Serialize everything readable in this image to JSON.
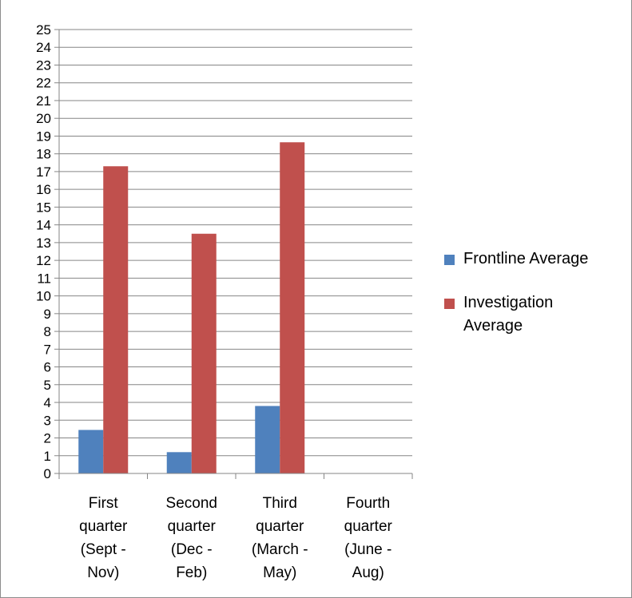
{
  "chart_data": {
    "type": "bar",
    "categories": [
      [
        "First",
        "quarter",
        "(Sept -",
        "Nov)"
      ],
      [
        "Second",
        "quarter",
        "(Dec -",
        "Feb)"
      ],
      [
        "Third",
        "quarter",
        "(March -",
        "May)"
      ],
      [
        "Fourth",
        "quarter",
        "(June -",
        "Aug)"
      ]
    ],
    "series": [
      {
        "name": "Frontline Average",
        "color": "#4f81bd",
        "values": [
          2.45,
          1.2,
          3.8,
          0
        ]
      },
      {
        "name": "Investigation Average",
        "color": "#c0504d",
        "values": [
          17.3,
          13.5,
          18.65,
          0
        ]
      }
    ],
    "ylim": [
      0,
      25
    ],
    "ytick_step": 1,
    "yticks": [
      "0",
      "1",
      "2",
      "3",
      "4",
      "5",
      "6",
      "7",
      "8",
      "9",
      "10",
      "11",
      "12",
      "13",
      "14",
      "15",
      "16",
      "17",
      "18",
      "19",
      "20",
      "21",
      "22",
      "23",
      "24",
      "25"
    ],
    "grid": true,
    "legend_position": "right",
    "gridline_color": "#868686",
    "title": "",
    "xlabel": "",
    "ylabel": ""
  },
  "legend": {
    "items": [
      {
        "label": "Frontline Average",
        "color": "#4f81bd"
      },
      {
        "label": "Investigation\nAverage",
        "color": "#c0504d"
      }
    ]
  }
}
